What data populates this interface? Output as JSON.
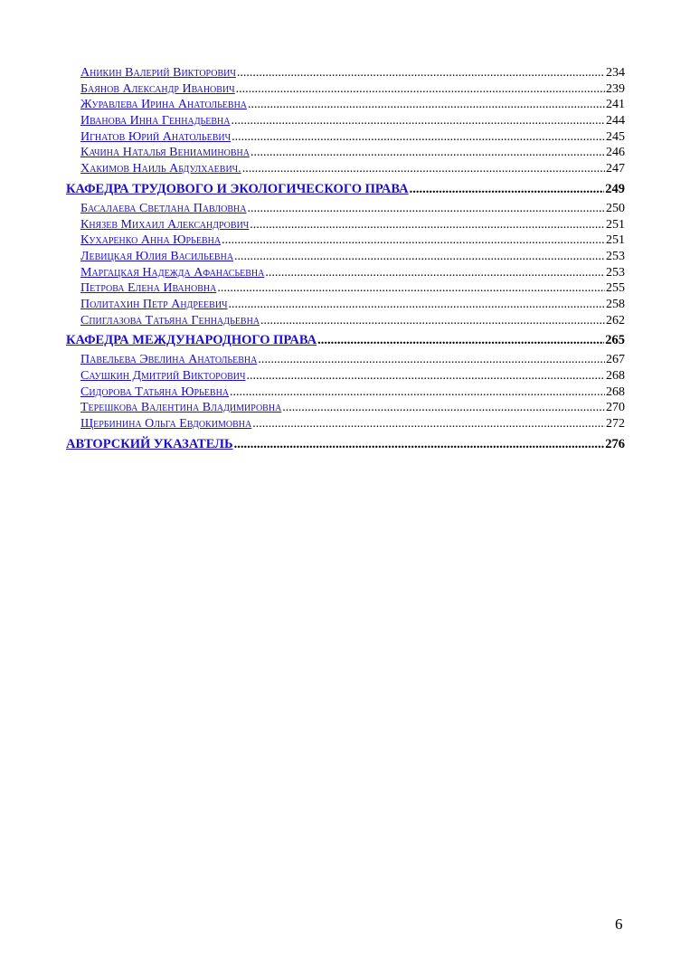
{
  "toc": {
    "sections": [
      {
        "title": "",
        "page": "",
        "entries": [
          {
            "name": "Аникин Валерий Викторович",
            "page": "234"
          },
          {
            "name": "Баянов Александр Иванович",
            "page": "239"
          },
          {
            "name": "Журавлева Ирина Анатольевна",
            "page": "241"
          },
          {
            "name": "Иванова Инна Геннадьевна",
            "page": "244"
          },
          {
            "name": "Игнатов Юрий Анатольевич",
            "page": "245"
          },
          {
            "name": "Качина Наталья Вениаминовна",
            "page": "246"
          },
          {
            "name": "Хакимов Наиль Абдулхаевич.",
            "page": "247"
          }
        ]
      },
      {
        "title": "КАФЕДРА ТРУДОВОГО И ЭКОЛОГИЧЕСКОГО ПРАВА",
        "page": "249",
        "entries": [
          {
            "name": "Басалаева Светлана Павловна",
            "page": "250"
          },
          {
            "name": "Князев Михаил Александрович",
            "page": "251"
          },
          {
            "name": "Кухаренко Анна Юрьевна",
            "page": "251"
          },
          {
            "name": "Левицкая Юлия Васильевна",
            "page": "253"
          },
          {
            "name": "Маргацкая Надежда Афанасьевна",
            "page": "253"
          },
          {
            "name": "Петрова Елена Ивановна",
            "page": "255"
          },
          {
            "name": "Политахин Петр Андреевич",
            "page": "258"
          },
          {
            "name": "Спиглазова Татьяна Геннадьевна",
            "page": "262"
          }
        ]
      },
      {
        "title": "КАФЕДРА МЕЖДУНАРОДНОГО ПРАВА",
        "page": "265",
        "entries": [
          {
            "name": "Павельева Эвелина Анатольевна",
            "page": "267"
          },
          {
            "name": "Саушкин Дмитрий Викторович",
            "page": "268"
          },
          {
            "name": "Сидорова Татьяна Юрьевна",
            "page": "268"
          },
          {
            "name": "Терешкова Валентина Владимировна",
            "page": "270"
          },
          {
            "name": "Щербинина Ольга Евдокимовна",
            "page": "272"
          }
        ]
      },
      {
        "title": "АВТОРСКИЙ УКАЗАТЕЛЬ",
        "page": "276",
        "entries": []
      }
    ]
  },
  "footer": {
    "page_number": "6"
  },
  "colors": {
    "link": "#1a0dcc"
  }
}
